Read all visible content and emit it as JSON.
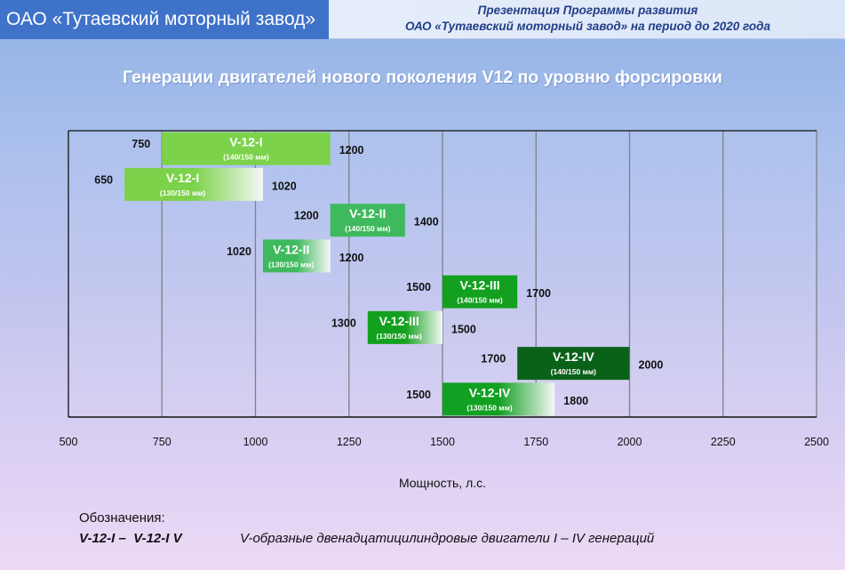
{
  "header": {
    "company": "ОАО «Тутаевский моторный завод»",
    "presentation_line1": "Презентация Программы развития",
    "presentation_line2": "ОАО «Тутаевский моторный завод» на период до 2020 года"
  },
  "title": "Генерации двигателей нового поколения V12 по уровню форсировки",
  "chart_data": {
    "type": "bar",
    "orientation": "horizontal-floating-range",
    "xlabel": "Мощность, л.с.",
    "xlim": [
      500,
      2500
    ],
    "x_ticks": [
      "500",
      "750",
      "1000",
      "1250",
      "1500",
      "1750",
      "2000",
      "2250",
      "2500"
    ],
    "grid": "vertical",
    "rows": [
      {
        "name": "V-12-I",
        "sub": "(140/150 мм)",
        "start": 750,
        "end": 1200,
        "start_label": "750",
        "end_label": "1200",
        "style": "solid",
        "color": "#7cd24a"
      },
      {
        "name": "V-12-I",
        "sub": "(130/150 мм)",
        "start": 650,
        "end": 1020,
        "start_label": "650",
        "end_label": "1020",
        "style": "fade",
        "color": "#7cd24a"
      },
      {
        "name": "V-12-II",
        "sub": "(140/150 мм)",
        "start": 1200,
        "end": 1400,
        "start_label": "1200",
        "end_label": "1400",
        "style": "solid",
        "color": "#3fb95e"
      },
      {
        "name": "V-12-II",
        "sub": "(130/150 мм)",
        "start": 1020,
        "end": 1200,
        "start_label": "1020",
        "end_label": "1200",
        "style": "fade",
        "color": "#3fb95e"
      },
      {
        "name": "V-12-III",
        "sub": "(140/150 мм)",
        "start": 1500,
        "end": 1700,
        "start_label": "1500",
        "end_label": "1700",
        "style": "solid",
        "color": "#13a01f"
      },
      {
        "name": "V-12-III",
        "sub": "(130/150 мм)",
        "start": 1300,
        "end": 1500,
        "start_label": "1300",
        "end_label": "1500",
        "style": "fade",
        "color": "#13a01f"
      },
      {
        "name": "V-12-IV",
        "sub": "(140/150 мм)",
        "start": 1700,
        "end": 2000,
        "start_label": "1700",
        "end_label": "2000",
        "style": "solid",
        "color": "#0a6219"
      },
      {
        "name": "V-12-IV",
        "sub": "(130/150 мм)",
        "start": 1500,
        "end": 1800,
        "start_label": "1500",
        "end_label": "1800",
        "style": "fade",
        "color": "#11a022"
      }
    ]
  },
  "legend": {
    "heading": "Обозначения:",
    "key": "V-12-I –  V-12-I V",
    "description": "V-образные двенадцатицилиндровые двигатели  I – IV  генераций"
  }
}
